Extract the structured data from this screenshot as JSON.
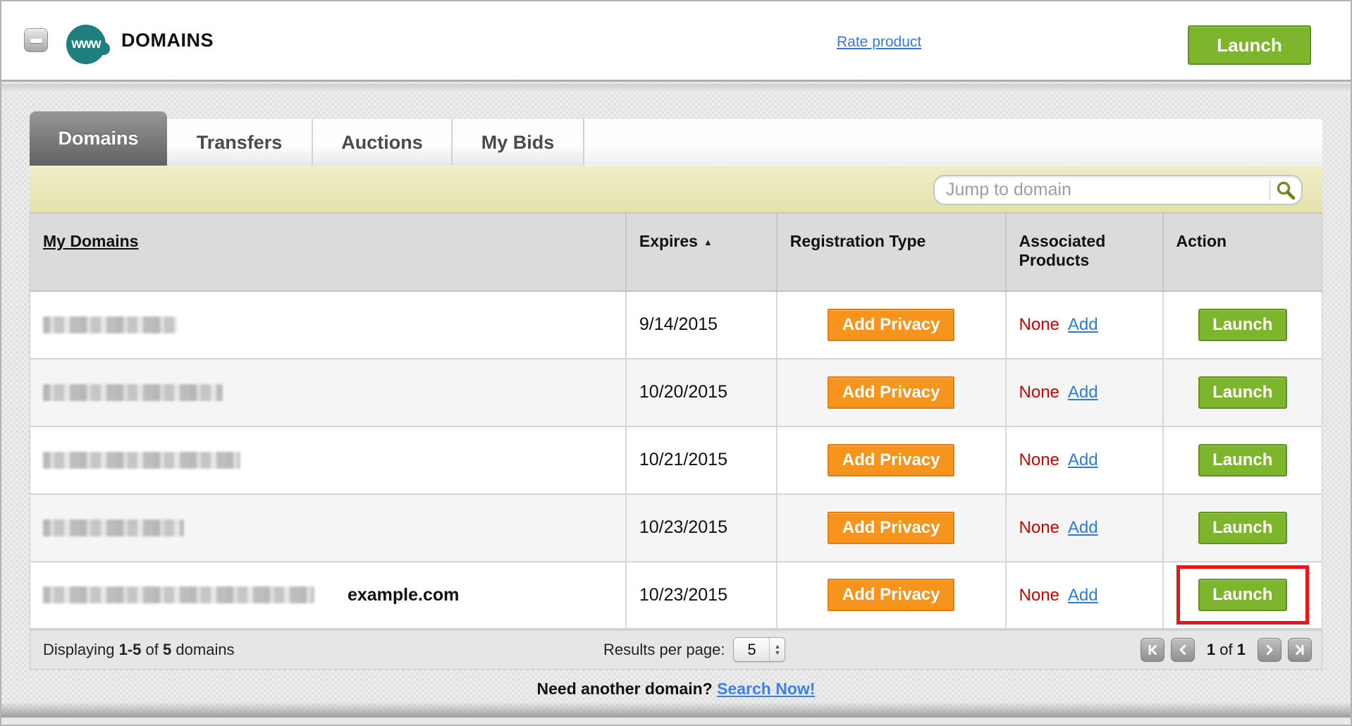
{
  "header": {
    "title": "DOMAINS",
    "badge_text": "www",
    "rate_link": "Rate product",
    "launch_button": "Launch"
  },
  "tabs": [
    {
      "label": "Domains",
      "active": true
    },
    {
      "label": "Transfers",
      "active": false
    },
    {
      "label": "Auctions",
      "active": false
    },
    {
      "label": "My Bids",
      "active": false
    }
  ],
  "search": {
    "placeholder": "Jump to domain"
  },
  "table": {
    "columns": {
      "domains": "My Domains",
      "expires": "Expires",
      "expires_sort": "ascending",
      "registration": "Registration Type",
      "associated": "Associated Products",
      "action": "Action"
    },
    "rows": [
      {
        "redacted_width": 190,
        "domain_note": "",
        "expires": "9/14/2015",
        "registration_button": "Add Privacy",
        "associated_value": "None",
        "associated_link": "Add",
        "action_button": "Launch",
        "highlighted": false
      },
      {
        "redacted_width": 255,
        "domain_note": "",
        "expires": "10/20/2015",
        "registration_button": "Add Privacy",
        "associated_value": "None",
        "associated_link": "Add",
        "action_button": "Launch",
        "highlighted": false
      },
      {
        "redacted_width": 280,
        "domain_note": "",
        "expires": "10/21/2015",
        "registration_button": "Add Privacy",
        "associated_value": "None",
        "associated_link": "Add",
        "action_button": "Launch",
        "highlighted": false
      },
      {
        "redacted_width": 200,
        "domain_note": "",
        "expires": "10/23/2015",
        "registration_button": "Add Privacy",
        "associated_value": "None",
        "associated_link": "Add",
        "action_button": "Launch",
        "highlighted": false
      },
      {
        "redacted_width": 385,
        "domain_note": "example.com",
        "expires": "10/23/2015",
        "registration_button": "Add Privacy",
        "associated_value": "None",
        "associated_link": "Add",
        "action_button": "Launch",
        "highlighted": true
      }
    ]
  },
  "footer": {
    "displaying_prefix": "Displaying",
    "range": "1-5",
    "of_word": "of",
    "total": "5",
    "suffix": "domains",
    "results_per_page_label": "Results per page:",
    "results_per_page_value": "5",
    "page_current": "1",
    "page_of": "of",
    "page_total": "1"
  },
  "bottom": {
    "prompt": "Need another domain?",
    "link": "Search Now!"
  },
  "colors": {
    "brand_teal": "#1F7F7F",
    "button_green": "#7DB52D",
    "button_green_border": "#5F9221",
    "button_orange": "#F7941E",
    "button_orange_border": "#DF7F10",
    "link_blue": "#2E7BD6",
    "none_red": "#CC0000",
    "highlight_red": "#E9151D",
    "search_bar_yellow": "#EAE7B6"
  }
}
